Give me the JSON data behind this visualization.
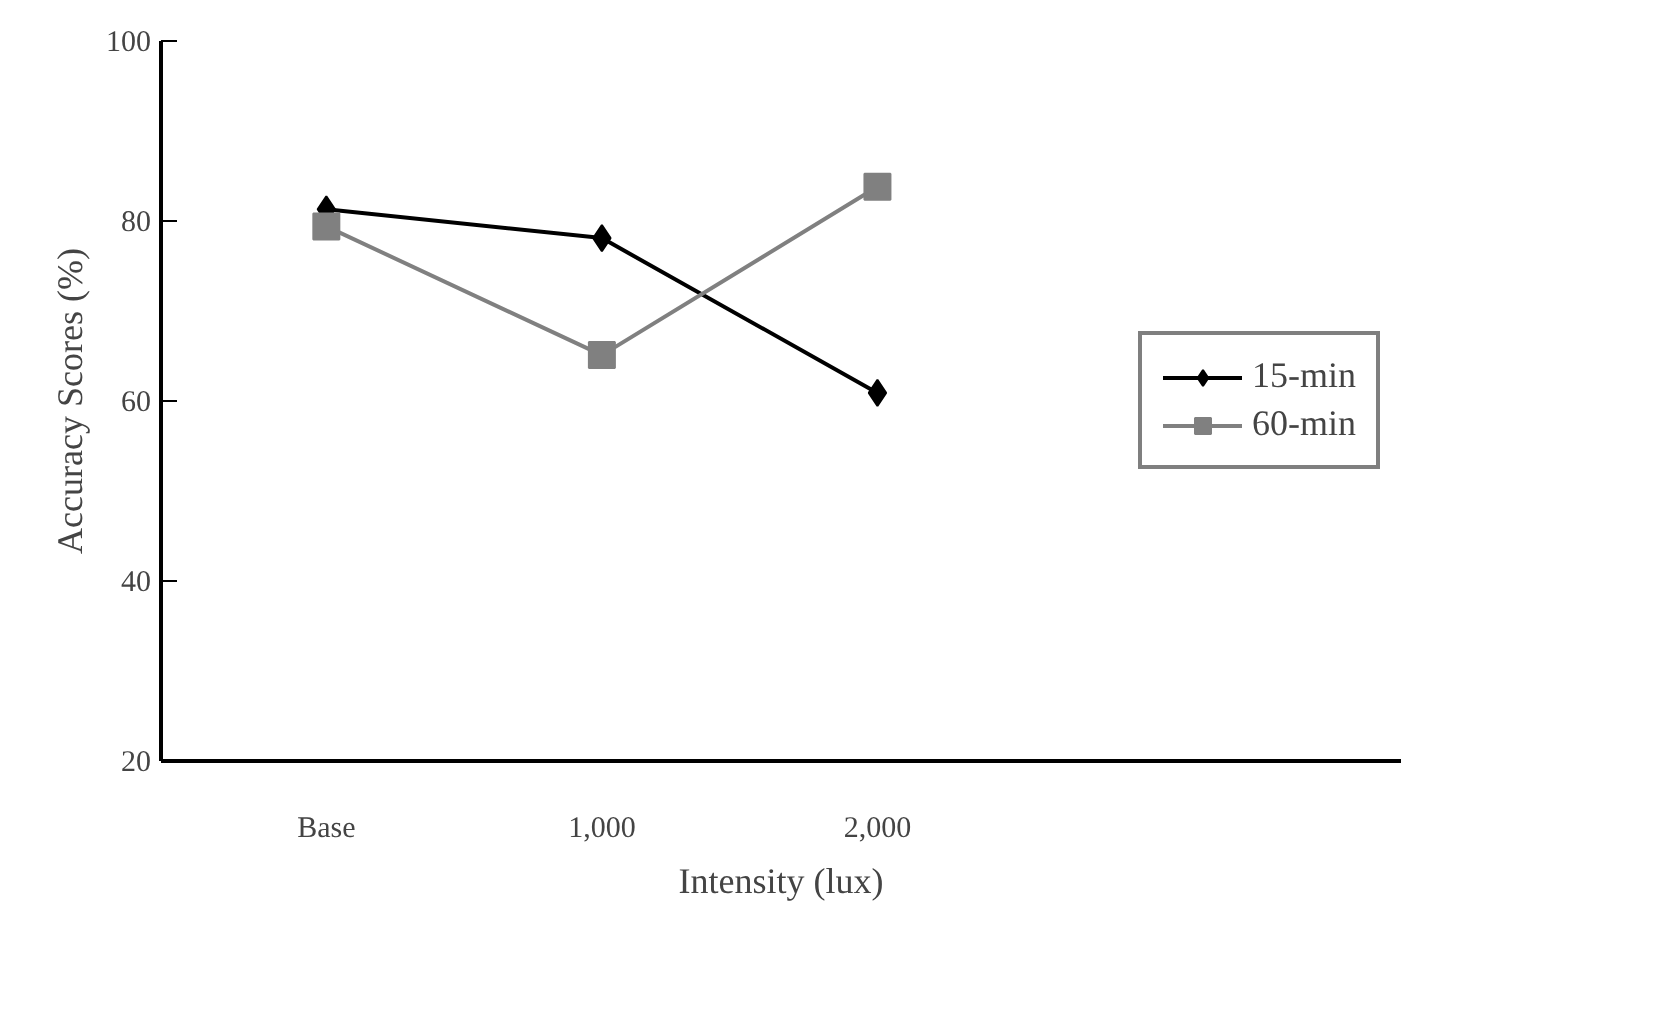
{
  "chart_data": {
    "type": "line",
    "xlabel": "Intensity (lux)",
    "ylabel": "Accuracy Scores (%)",
    "categories": [
      "Base",
      "1,000",
      "2,000"
    ],
    "ylim": [
      20,
      100
    ],
    "yticks": [
      20,
      40,
      60,
      80,
      100
    ],
    "grid": false,
    "legend": "right",
    "line_style": "solid",
    "series": [
      {
        "name": "15-min",
        "color": "#000000",
        "marker": "diamond",
        "values": [
          81.3,
          78.1,
          60.9
        ]
      },
      {
        "name": "60-min",
        "color": "#808080",
        "marker": "square",
        "values": [
          79.4,
          65.1,
          83.8
        ]
      }
    ]
  }
}
